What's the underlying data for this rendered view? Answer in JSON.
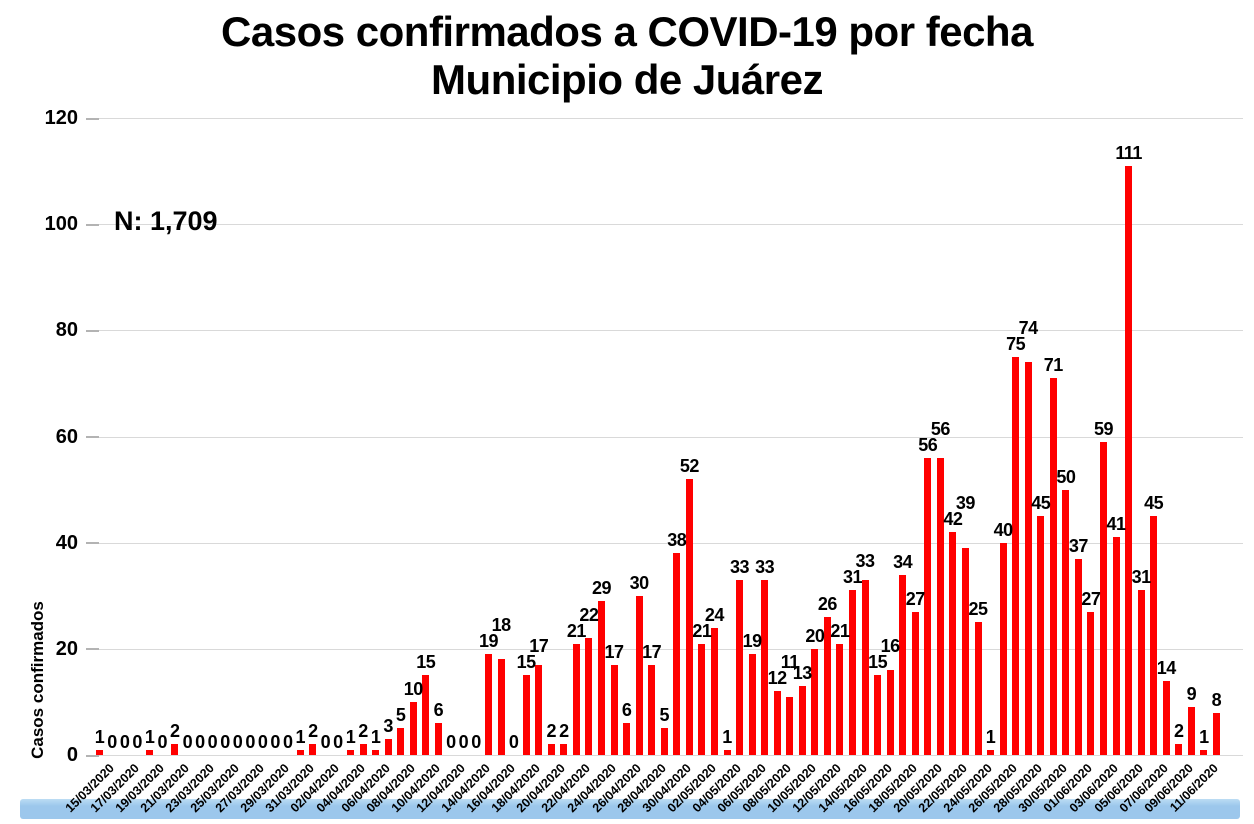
{
  "chart_data": {
    "type": "bar",
    "title_line1": "Casos confirmados a COVID-19 por fecha",
    "title_line2": "Municipio de Juárez",
    "annotation": "N: 1,709",
    "total_n": 1709,
    "ylabel": "Casos confirmados",
    "ylim": [
      0,
      120
    ],
    "yticks": [
      0,
      20,
      40,
      60,
      80,
      100,
      120
    ],
    "grid": true,
    "legend": "none",
    "bar_color": "#FF0000",
    "gridline_color": "#D9D9D9",
    "footer_bar_color": "#9CC7EC",
    "xtick_every": 2,
    "categories": [
      "15/03/2020",
      "16/03/2020",
      "17/03/2020",
      "18/03/2020",
      "19/03/2020",
      "20/03/2020",
      "21/03/2020",
      "22/03/2020",
      "23/03/2020",
      "24/03/2020",
      "25/03/2020",
      "26/03/2020",
      "27/03/2020",
      "28/03/2020",
      "29/03/2020",
      "30/03/2020",
      "31/03/2020",
      "01/04/2020",
      "02/04/2020",
      "03/04/2020",
      "04/04/2020",
      "05/04/2020",
      "06/04/2020",
      "07/04/2020",
      "08/04/2020",
      "09/04/2020",
      "10/04/2020",
      "11/04/2020",
      "12/04/2020",
      "13/04/2020",
      "14/04/2020",
      "15/04/2020",
      "16/04/2020",
      "17/04/2020",
      "18/04/2020",
      "19/04/2020",
      "20/04/2020",
      "21/04/2020",
      "22/04/2020",
      "23/04/2020",
      "24/04/2020",
      "25/04/2020",
      "26/04/2020",
      "27/04/2020",
      "28/04/2020",
      "29/04/2020",
      "30/04/2020",
      "01/05/2020",
      "02/05/2020",
      "03/05/2020",
      "04/05/2020",
      "05/05/2020",
      "06/05/2020",
      "07/05/2020",
      "08/05/2020",
      "09/05/2020",
      "10/05/2020",
      "11/05/2020",
      "12/05/2020",
      "13/05/2020",
      "14/05/2020",
      "15/05/2020",
      "16/05/2020",
      "17/05/2020",
      "18/05/2020",
      "19/05/2020",
      "20/05/2020",
      "21/05/2020",
      "22/05/2020",
      "23/05/2020",
      "24/05/2020",
      "25/05/2020",
      "26/05/2020",
      "27/05/2020",
      "28/05/2020",
      "29/05/2020",
      "30/05/2020",
      "31/05/2020",
      "01/06/2020",
      "02/06/2020",
      "03/06/2020",
      "04/06/2020",
      "05/06/2020",
      "06/06/2020",
      "07/06/2020",
      "08/06/2020",
      "09/06/2020",
      "10/06/2020",
      "11/06/2020",
      "12/06/2020"
    ],
    "values": [
      1,
      0,
      0,
      0,
      1,
      0,
      2,
      0,
      0,
      0,
      0,
      0,
      0,
      0,
      0,
      0,
      1,
      2,
      0,
      0,
      1,
      2,
      1,
      3,
      5,
      10,
      15,
      6,
      0,
      0,
      0,
      19,
      18,
      0,
      15,
      17,
      2,
      2,
      21,
      22,
      29,
      17,
      6,
      30,
      17,
      5,
      38,
      52,
      21,
      24,
      1,
      33,
      19,
      33,
      12,
      11,
      13,
      20,
      26,
      21,
      31,
      33,
      15,
      16,
      34,
      27,
      56,
      56,
      42,
      39,
      25,
      1,
      40,
      75,
      74,
      45,
      71,
      50,
      37,
      27,
      59,
      41,
      111,
      31,
      45,
      14,
      2,
      9,
      1,
      8
    ]
  }
}
